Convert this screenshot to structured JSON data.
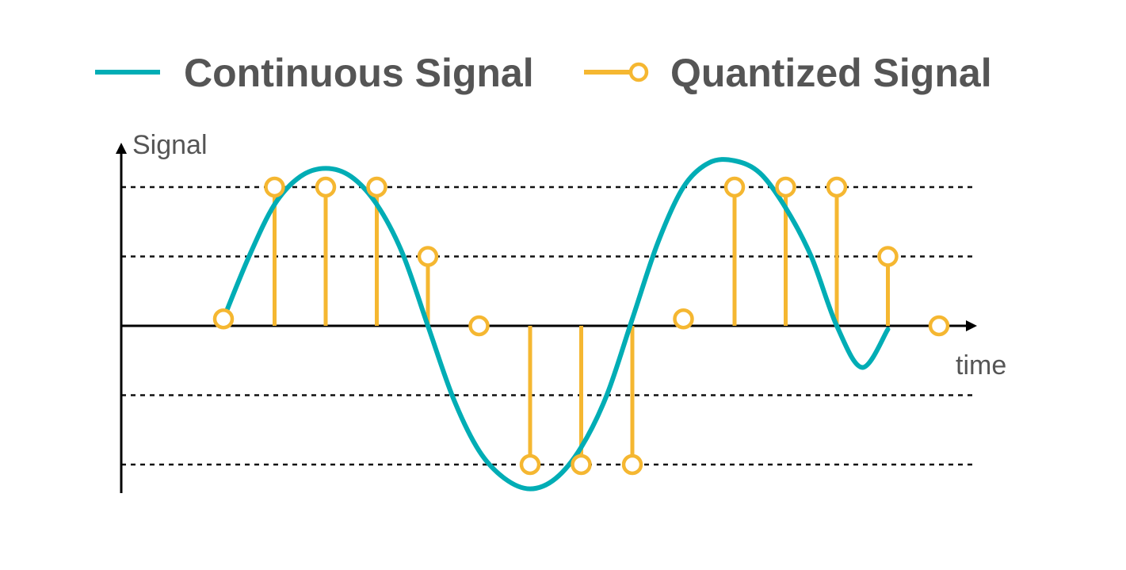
{
  "chart_data": {
    "type": "line",
    "title": "",
    "xlabel": "time",
    "ylabel": "Signal",
    "legend_placement": "top",
    "grid": "horizontal dashed lines at quantization levels",
    "quantization_levels": [
      -2,
      -1,
      1,
      2
    ],
    "ylim": [
      -2.6,
      2.6
    ],
    "xlim": [
      0,
      15.2
    ],
    "series": [
      {
        "name": "Continuous Signal",
        "color": "#00adb5",
        "style": "line",
        "x": [
          2,
          2.5,
          3,
          3.5,
          4,
          4.5,
          5,
          5.5,
          6,
          6.5,
          7,
          7.5,
          8,
          8.5,
          9,
          9.5,
          10,
          10.5,
          11,
          11.5,
          12,
          12.5,
          13,
          13.5,
          14,
          14.5,
          15
        ],
        "y": [
          0.1,
          1.0,
          1.75,
          2.15,
          2.27,
          2.15,
          1.75,
          1.05,
          0.0,
          -1.05,
          -1.8,
          -2.2,
          -2.35,
          -2.2,
          -1.75,
          -1.0,
          0.1,
          1.2,
          2.0,
          2.35,
          2.38,
          2.2,
          1.7,
          1.0,
          0.0,
          -0.6,
          -0.05
        ]
      },
      {
        "name": "Quantized Signal",
        "color": "#f5b731",
        "style": "stem",
        "x": [
          2,
          3,
          4,
          5,
          6,
          7,
          8,
          9,
          10,
          11,
          12,
          13,
          14,
          15,
          16
        ],
        "y": [
          0.1,
          2,
          2,
          2,
          1,
          0,
          -2,
          -2,
          -2,
          0.1,
          2,
          2,
          2,
          1,
          0
        ]
      }
    ]
  }
}
